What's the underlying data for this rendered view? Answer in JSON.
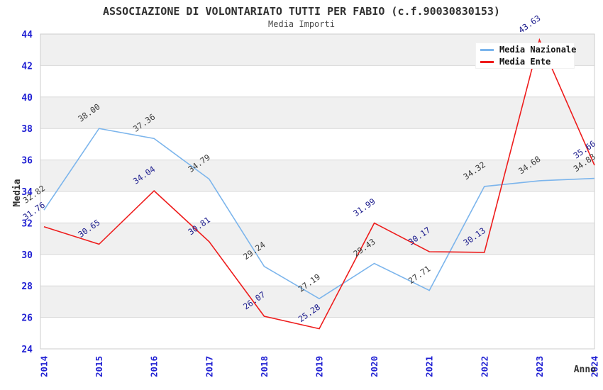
{
  "header": {
    "title": "ASSOCIAZIONE DI VOLONTARIATO TUTTI PER FABIO (c.f.90030830153)",
    "subtitle": "Media Importi"
  },
  "legend": {
    "items": [
      {
        "label": "Media Nazionale",
        "color": "#7cb5ec"
      },
      {
        "label": "Media Ente",
        "color": "#ee1c1c"
      }
    ]
  },
  "axes": {
    "y_title": "Media",
    "x_title": "Anno"
  },
  "colors": {
    "tick_label": "#1f1fd3",
    "axis_title": "#333333",
    "band_fill": "#f0f0f0",
    "gridline": "#d8d8d8",
    "plot_border": "#cccccc",
    "nazionale_line": "#7cb5ec",
    "nazionale_label": "#3c3c3c",
    "ente_line": "#ee1c1c",
    "ente_label": "#1a1a8c"
  },
  "chart_data": {
    "type": "line",
    "title": "ASSOCIAZIONE DI VOLONTARIATO TUTTI PER FABIO (c.f.90030830153)",
    "subtitle": "Media Importi",
    "xlabel": "Anno",
    "ylabel": "Media",
    "x": [
      2014,
      2015,
      2016,
      2017,
      2018,
      2019,
      2020,
      2021,
      2022,
      2023,
      2024
    ],
    "series": [
      {
        "name": "Media Nazionale",
        "color": "#7cb5ec",
        "label_color": "#3c3c3c",
        "values": [
          32.82,
          38.0,
          37.36,
          34.79,
          29.24,
          27.19,
          29.43,
          27.71,
          34.32,
          34.68,
          34.83
        ]
      },
      {
        "name": "Media Ente",
        "color": "#ee1c1c",
        "label_color": "#1a1a8c",
        "values": [
          31.76,
          30.65,
          34.04,
          30.81,
          26.07,
          25.28,
          31.99,
          30.17,
          30.13,
          43.63,
          35.66
        ]
      }
    ],
    "ylim": [
      24,
      44
    ],
    "ytick_step": 2,
    "grid": true,
    "alternating_bands": true,
    "legend_position": "top-right",
    "data_labels": true,
    "data_label_rotation": -35,
    "x_tick_rotation": -90
  }
}
